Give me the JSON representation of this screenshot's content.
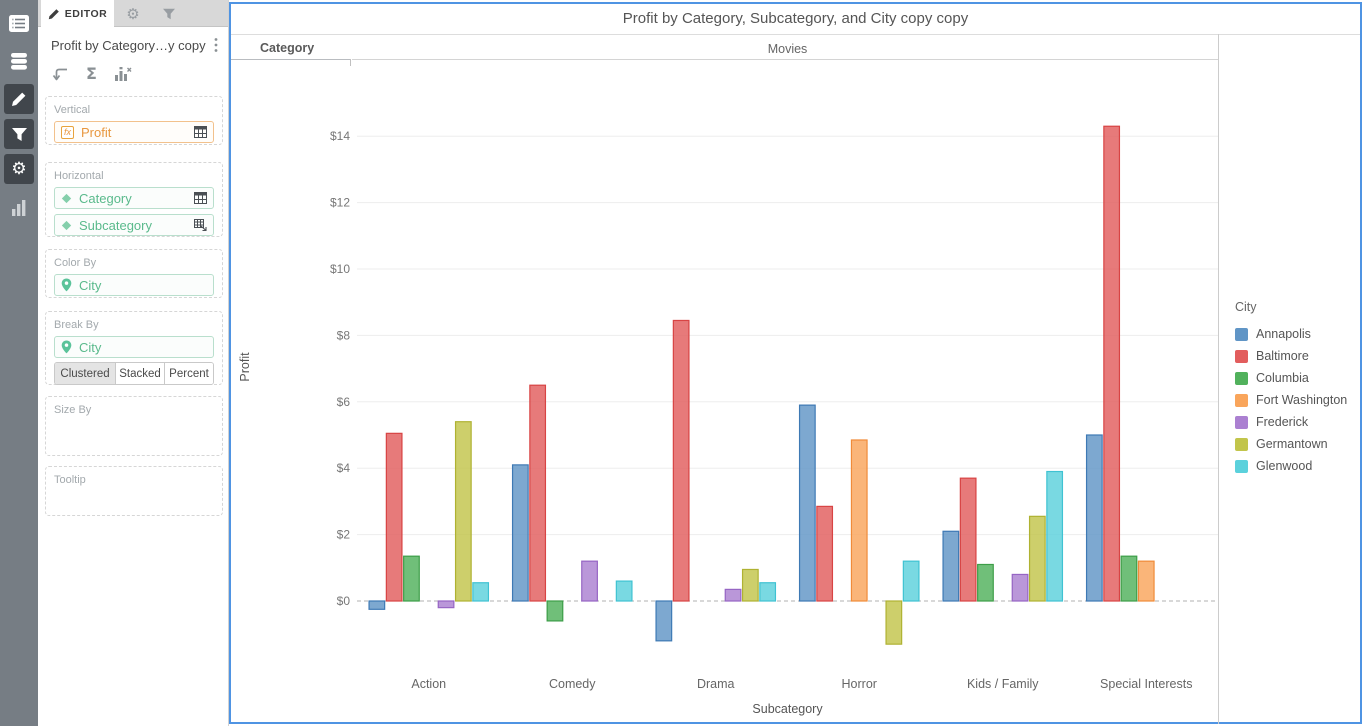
{
  "rail": {
    "items": [
      {
        "icon": "list-icon"
      },
      {
        "icon": "database-icon"
      },
      {
        "icon": "pencil-icon",
        "selected": true
      },
      {
        "icon": "filter-icon",
        "selected": true
      },
      {
        "icon": "gear-icon",
        "selected": true
      },
      {
        "icon": "bar-chart-icon"
      }
    ],
    "gear_glyph": "⚙"
  },
  "editor": {
    "tab_label": "EDITOR",
    "title": "Profit by Category…y copy",
    "toolbar_icons": [
      "undo-turn-icon",
      "sigma-icon",
      "chart-axis-icon"
    ],
    "sigma_glyph": "Σ",
    "sections": {
      "vertical": {
        "label": "Vertical",
        "field": "Profit"
      },
      "horizontal": {
        "label": "Horizontal",
        "fields": [
          "Category",
          "Subcategory"
        ]
      },
      "color_by": {
        "label": "Color By",
        "field": "City"
      },
      "break_by": {
        "label": "Break By",
        "field": "City",
        "modes": [
          "Clustered",
          "Stacked",
          "Percent"
        ],
        "active_mode": "Clustered"
      },
      "size_by": {
        "label": "Size By"
      },
      "tooltip": {
        "label": "Tooltip"
      }
    }
  },
  "chart_data": {
    "type": "bar",
    "bar_mode": "clustered",
    "title": "Profit by Category, Subcategory, and City copy copy",
    "facet_label": "Category",
    "facet_value": "Movies",
    "xlabel": "Subcategory",
    "ylabel": "Profit",
    "legend_title": "City",
    "legend_position": "right",
    "grid": true,
    "ylim": [
      -2.3,
      16.3
    ],
    "y_ticks": [
      {
        "value": 0,
        "label": "$0"
      },
      {
        "value": 2,
        "label": "$2"
      },
      {
        "value": 4,
        "label": "$4"
      },
      {
        "value": 6,
        "label": "$6"
      },
      {
        "value": 8,
        "label": "$8"
      },
      {
        "value": 10,
        "label": "$10"
      },
      {
        "value": 12,
        "label": "$12"
      },
      {
        "value": 14,
        "label": "$14"
      }
    ],
    "categories": [
      "Action",
      "Comedy",
      "Drama",
      "Horror",
      "Kids / Family",
      "Special Interests"
    ],
    "series": [
      {
        "name": "Annapolis",
        "color": "#6095c6",
        "stroke": "#3e79b4",
        "values": [
          -0.25,
          4.1,
          -1.2,
          5.9,
          2.1,
          5.0
        ]
      },
      {
        "name": "Baltimore",
        "color": "#e25d5d",
        "stroke": "#d84444",
        "values": [
          5.05,
          6.5,
          8.45,
          2.85,
          3.7,
          14.3
        ]
      },
      {
        "name": "Columbia",
        "color": "#51b15c",
        "stroke": "#3d9e48",
        "values": [
          1.35,
          -0.6,
          null,
          null,
          1.1,
          1.35
        ]
      },
      {
        "name": "Fort Washington",
        "color": "#f9a55b",
        "stroke": "#f08b39",
        "values": [
          null,
          null,
          null,
          4.85,
          null,
          1.2
        ]
      },
      {
        "name": "Frederick",
        "color": "#ab80d1",
        "stroke": "#9665c4",
        "values": [
          -0.2,
          1.2,
          0.35,
          null,
          0.8,
          null
        ]
      },
      {
        "name": "Germantown",
        "color": "#c2c54b",
        "stroke": "#afb232",
        "values": [
          5.4,
          null,
          0.95,
          -1.3,
          2.55,
          null
        ]
      },
      {
        "name": "Glenwood",
        "color": "#5bd1dc",
        "stroke": "#3fc2d2",
        "values": [
          0.55,
          0.6,
          0.55,
          1.2,
          3.9,
          null
        ]
      }
    ]
  }
}
